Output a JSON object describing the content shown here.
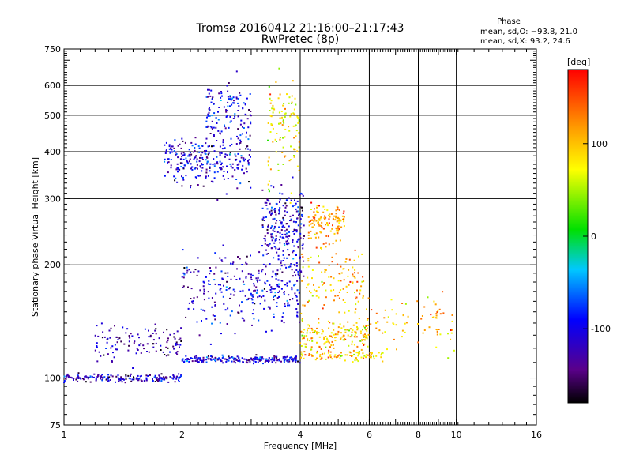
{
  "chart_data": {
    "type": "scatter",
    "title": "Tromsø 20160412 21:16:00–21:17:43",
    "subtitle": "RwPretec (8p)",
    "xlabel": "Frequency [MHz]",
    "ylabel": "Stationary phase Virtual Height [km]",
    "x_scale": "log",
    "y_scale": "log",
    "xlim": [
      1,
      16
    ],
    "ylim": [
      75,
      750
    ],
    "x_ticks": [
      1,
      2,
      4,
      6,
      8,
      10,
      16
    ],
    "x_tick_labels": [
      "1",
      "2",
      "4",
      "6",
      "8",
      "10",
      "16"
    ],
    "y_ticks": [
      75,
      100,
      200,
      300,
      400,
      500,
      600,
      750
    ],
    "y_tick_labels": [
      "75",
      "100",
      "200",
      "300",
      "400",
      "500",
      "600",
      "750"
    ],
    "grid": true,
    "stats": {
      "heading": "Phase",
      "line_o": "mean, sd,O: −93.8, 21.0",
      "line_x": "mean, sd,X:  93.2, 24.6"
    },
    "colorbar": {
      "label": "[deg]",
      "min": -180,
      "max": 180,
      "ticks": [
        100,
        0,
        -100
      ],
      "tick_labels": [
        "100",
        "0",
        "-100"
      ],
      "colormap": "rainbow (black-purple-blue-cyan-green-yellow-orange-red)"
    },
    "series": [
      {
        "x_range": [
          1.0,
          2.0
        ],
        "y_center": 100,
        "y_spread": 2,
        "phase": -120,
        "count": 180
      },
      {
        "x_range": [
          2.0,
          4.0
        ],
        "y_center": 112,
        "y_spread": 2,
        "phase": -110,
        "count": 220
      },
      {
        "x_range": [
          4.0,
          6.5
        ],
        "y_center": 115,
        "y_spread": 3,
        "phase": 100,
        "count": 90
      },
      {
        "x_range": [
          1.2,
          2.0
        ],
        "y_center": 125,
        "y_spread": 12,
        "phase": -130,
        "count": 120
      },
      {
        "x_range": [
          1.8,
          3.0
        ],
        "y_center": 380,
        "y_spread": 45,
        "phase": -110,
        "count": 260
      },
      {
        "x_range": [
          2.3,
          3.0
        ],
        "y_center": 500,
        "y_spread": 90,
        "phase": -100,
        "count": 140
      },
      {
        "x_range": [
          3.2,
          4.1
        ],
        "y_center": 250,
        "y_spread": 60,
        "phase": -110,
        "count": 260
      },
      {
        "x_range": [
          3.0,
          4.0
        ],
        "y_center": 170,
        "y_spread": 25,
        "phase": -100,
        "count": 120
      },
      {
        "x_range": [
          3.3,
          4.0
        ],
        "y_center": 450,
        "y_spread": 120,
        "phase": 80,
        "count": 110
      },
      {
        "x_range": [
          4.2,
          5.2
        ],
        "y_center": 260,
        "y_spread": 25,
        "phase": 120,
        "count": 140
      },
      {
        "x_range": [
          4.0,
          5.8
        ],
        "y_center": 180,
        "y_spread": 30,
        "phase": 110,
        "count": 120
      },
      {
        "x_range": [
          4.0,
          6.0
        ],
        "y_center": 130,
        "y_spread": 10,
        "phase": 100,
        "count": 160
      },
      {
        "x_range": [
          5.8,
          10.0
        ],
        "y_center": 140,
        "y_spread": 20,
        "phase": 110,
        "count": 80
      },
      {
        "x_range": [
          2.0,
          3.2
        ],
        "y_center": 170,
        "y_spread": 35,
        "phase": -110,
        "count": 160
      }
    ]
  }
}
